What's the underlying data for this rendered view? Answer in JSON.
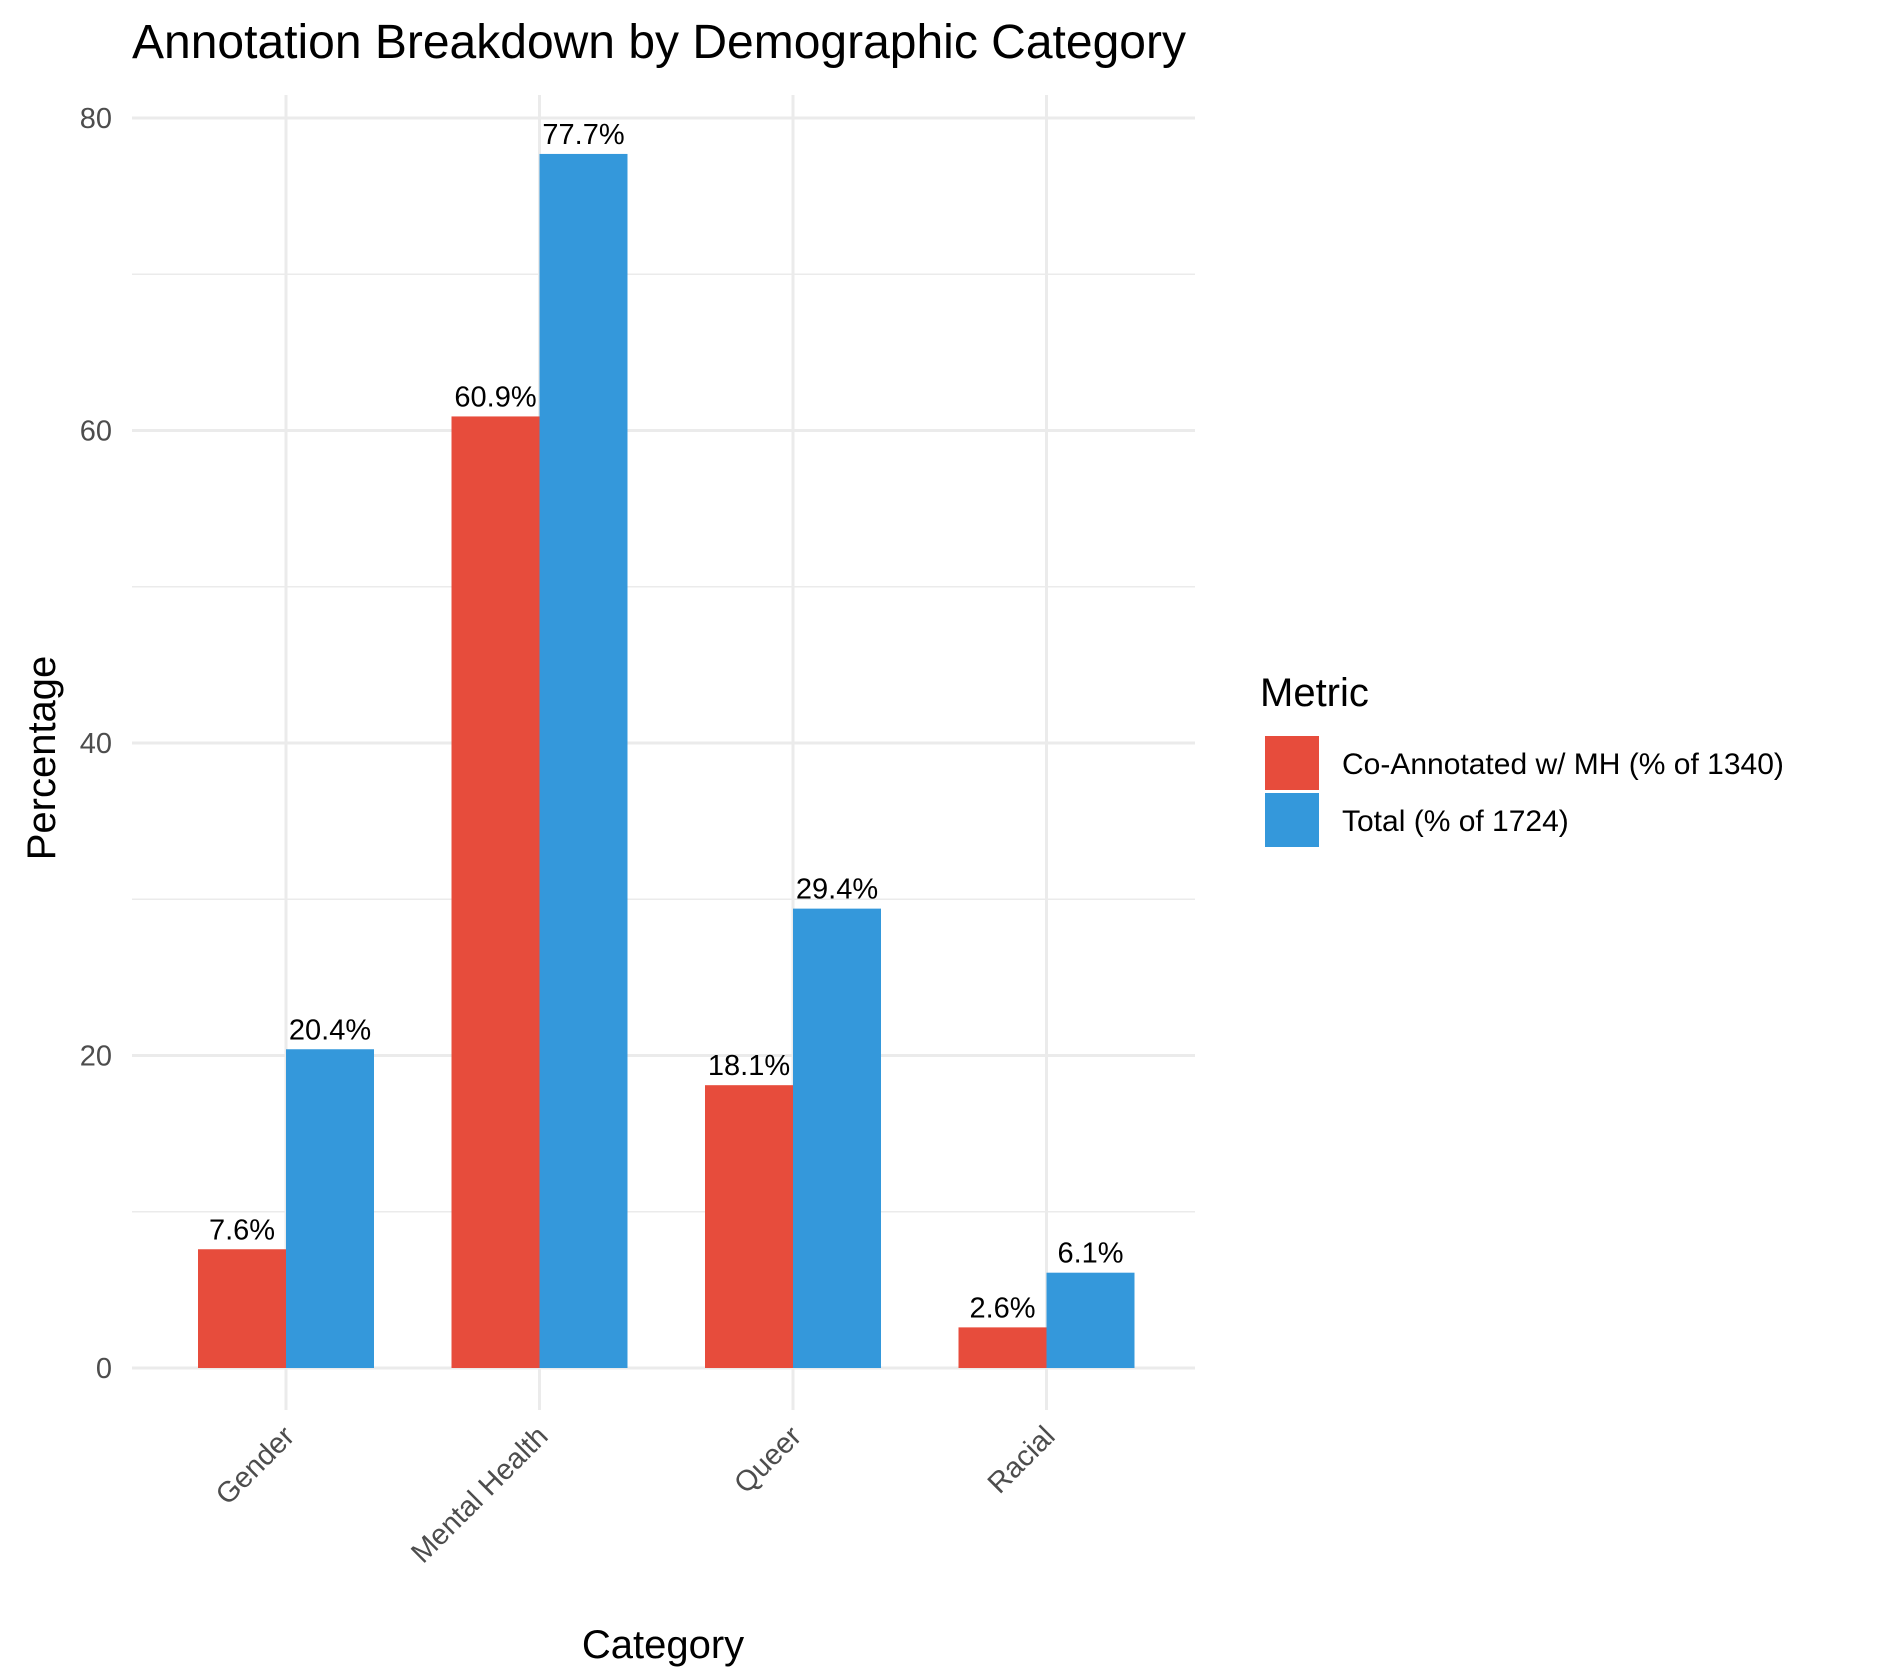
{
  "chart_data": {
    "type": "bar",
    "title": "Annotation Breakdown by Demographic Category",
    "xlabel": "Category",
    "ylabel": "Percentage",
    "categories": [
      "Gender",
      "Mental Health",
      "Queer",
      "Racial"
    ],
    "series": [
      {
        "name": "Co-Annotated w/ MH (% of 1340)",
        "color": "#E74C3C",
        "values": [
          7.6,
          60.9,
          18.1,
          2.6
        ],
        "labels": [
          "7.6%",
          "60.9%",
          "18.1%",
          "2.6%"
        ]
      },
      {
        "name": "Total (% of 1724)",
        "color": "#3498DB",
        "values": [
          20.4,
          77.7,
          29.4,
          6.1
        ],
        "labels": [
          "20.4%",
          "77.7%",
          "29.4%",
          "6.1%"
        ]
      }
    ],
    "ylim": [
      -3.5,
      81.5
    ],
    "yticks": [
      0,
      20,
      40,
      60,
      80
    ],
    "ytick_labels": [
      "0",
      "20",
      "40",
      "60",
      "80"
    ],
    "grid": true,
    "legend": {
      "title": "Metric",
      "position": "right"
    }
  }
}
